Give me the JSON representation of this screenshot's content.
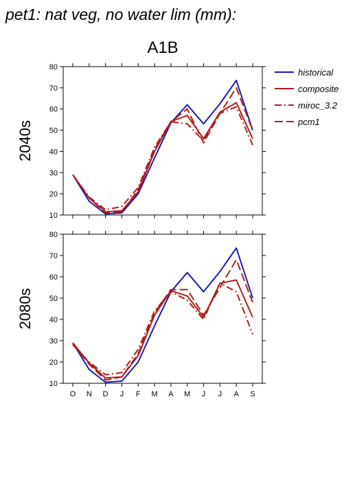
{
  "title": "pet1: nat veg, no water lim (mm):",
  "scenario": "A1B",
  "colors": {
    "historical": "#1a1ab4",
    "composite": "#b41a1a",
    "miroc": "#b41a1a",
    "pcm1": "#b41a1a"
  },
  "chart_data": [
    {
      "type": "line",
      "row_label": "2040s",
      "categories": [
        "O",
        "N",
        "D",
        "J",
        "F",
        "M",
        "A",
        "M",
        "J",
        "J",
        "A",
        "S"
      ],
      "ylim": [
        10,
        80
      ],
      "yticks": [
        10,
        20,
        30,
        40,
        50,
        60,
        70,
        80
      ],
      "series": [
        {
          "name": "historical",
          "style": "solid",
          "values": [
            29,
            16.5,
            10.5,
            11,
            20,
            37,
            53.5,
            62,
            53,
            62.5,
            73.5,
            50
          ]
        },
        {
          "name": "composite",
          "style": "solid",
          "values": [
            29,
            18,
            11.5,
            12,
            21,
            40,
            54,
            57,
            46,
            58.5,
            63,
            46
          ]
        },
        {
          "name": "miroc_3.2",
          "style": "dashdot",
          "values": [
            29,
            18.5,
            12.5,
            14,
            23,
            42,
            54,
            53,
            45,
            58,
            61,
            43
          ]
        },
        {
          "name": "pcm1",
          "style": "dash",
          "values": [
            29,
            18,
            11,
            11.5,
            22,
            41,
            54,
            60,
            44,
            58,
            70,
            50
          ]
        }
      ]
    },
    {
      "type": "line",
      "row_label": "2080s",
      "categories": [
        "O",
        "N",
        "D",
        "J",
        "F",
        "M",
        "A",
        "M",
        "J",
        "J",
        "A",
        "S"
      ],
      "ylim": [
        10,
        80
      ],
      "yticks": [
        10,
        20,
        30,
        40,
        50,
        60,
        70,
        80
      ],
      "series": [
        {
          "name": "historical",
          "style": "solid",
          "values": [
            29,
            16.5,
            10.5,
            11,
            20,
            37,
            53,
            62,
            53,
            62.5,
            73.5,
            50
          ]
        },
        {
          "name": "composite",
          "style": "solid",
          "values": [
            29,
            19.5,
            12.5,
            13,
            23,
            42,
            53.5,
            51,
            41,
            57,
            58.5,
            41
          ]
        },
        {
          "name": "miroc_3.2",
          "style": "dashdot",
          "values": [
            28,
            20,
            14,
            15,
            26,
            44,
            53,
            49,
            40,
            57,
            53,
            33
          ]
        },
        {
          "name": "pcm1",
          "style": "dash",
          "values": [
            28.5,
            19,
            11.5,
            13,
            24,
            43,
            54,
            54,
            42,
            55,
            68,
            48
          ]
        }
      ]
    }
  ],
  "legend": [
    {
      "name": "historical",
      "style": "solid",
      "color": "#1a1ab4"
    },
    {
      "name": "composite",
      "style": "solid",
      "color": "#b41a1a"
    },
    {
      "name": "miroc_3.2",
      "style": "dashdot",
      "color": "#b41a1a"
    },
    {
      "name": "pcm1",
      "style": "dash",
      "color": "#b41a1a"
    }
  ]
}
